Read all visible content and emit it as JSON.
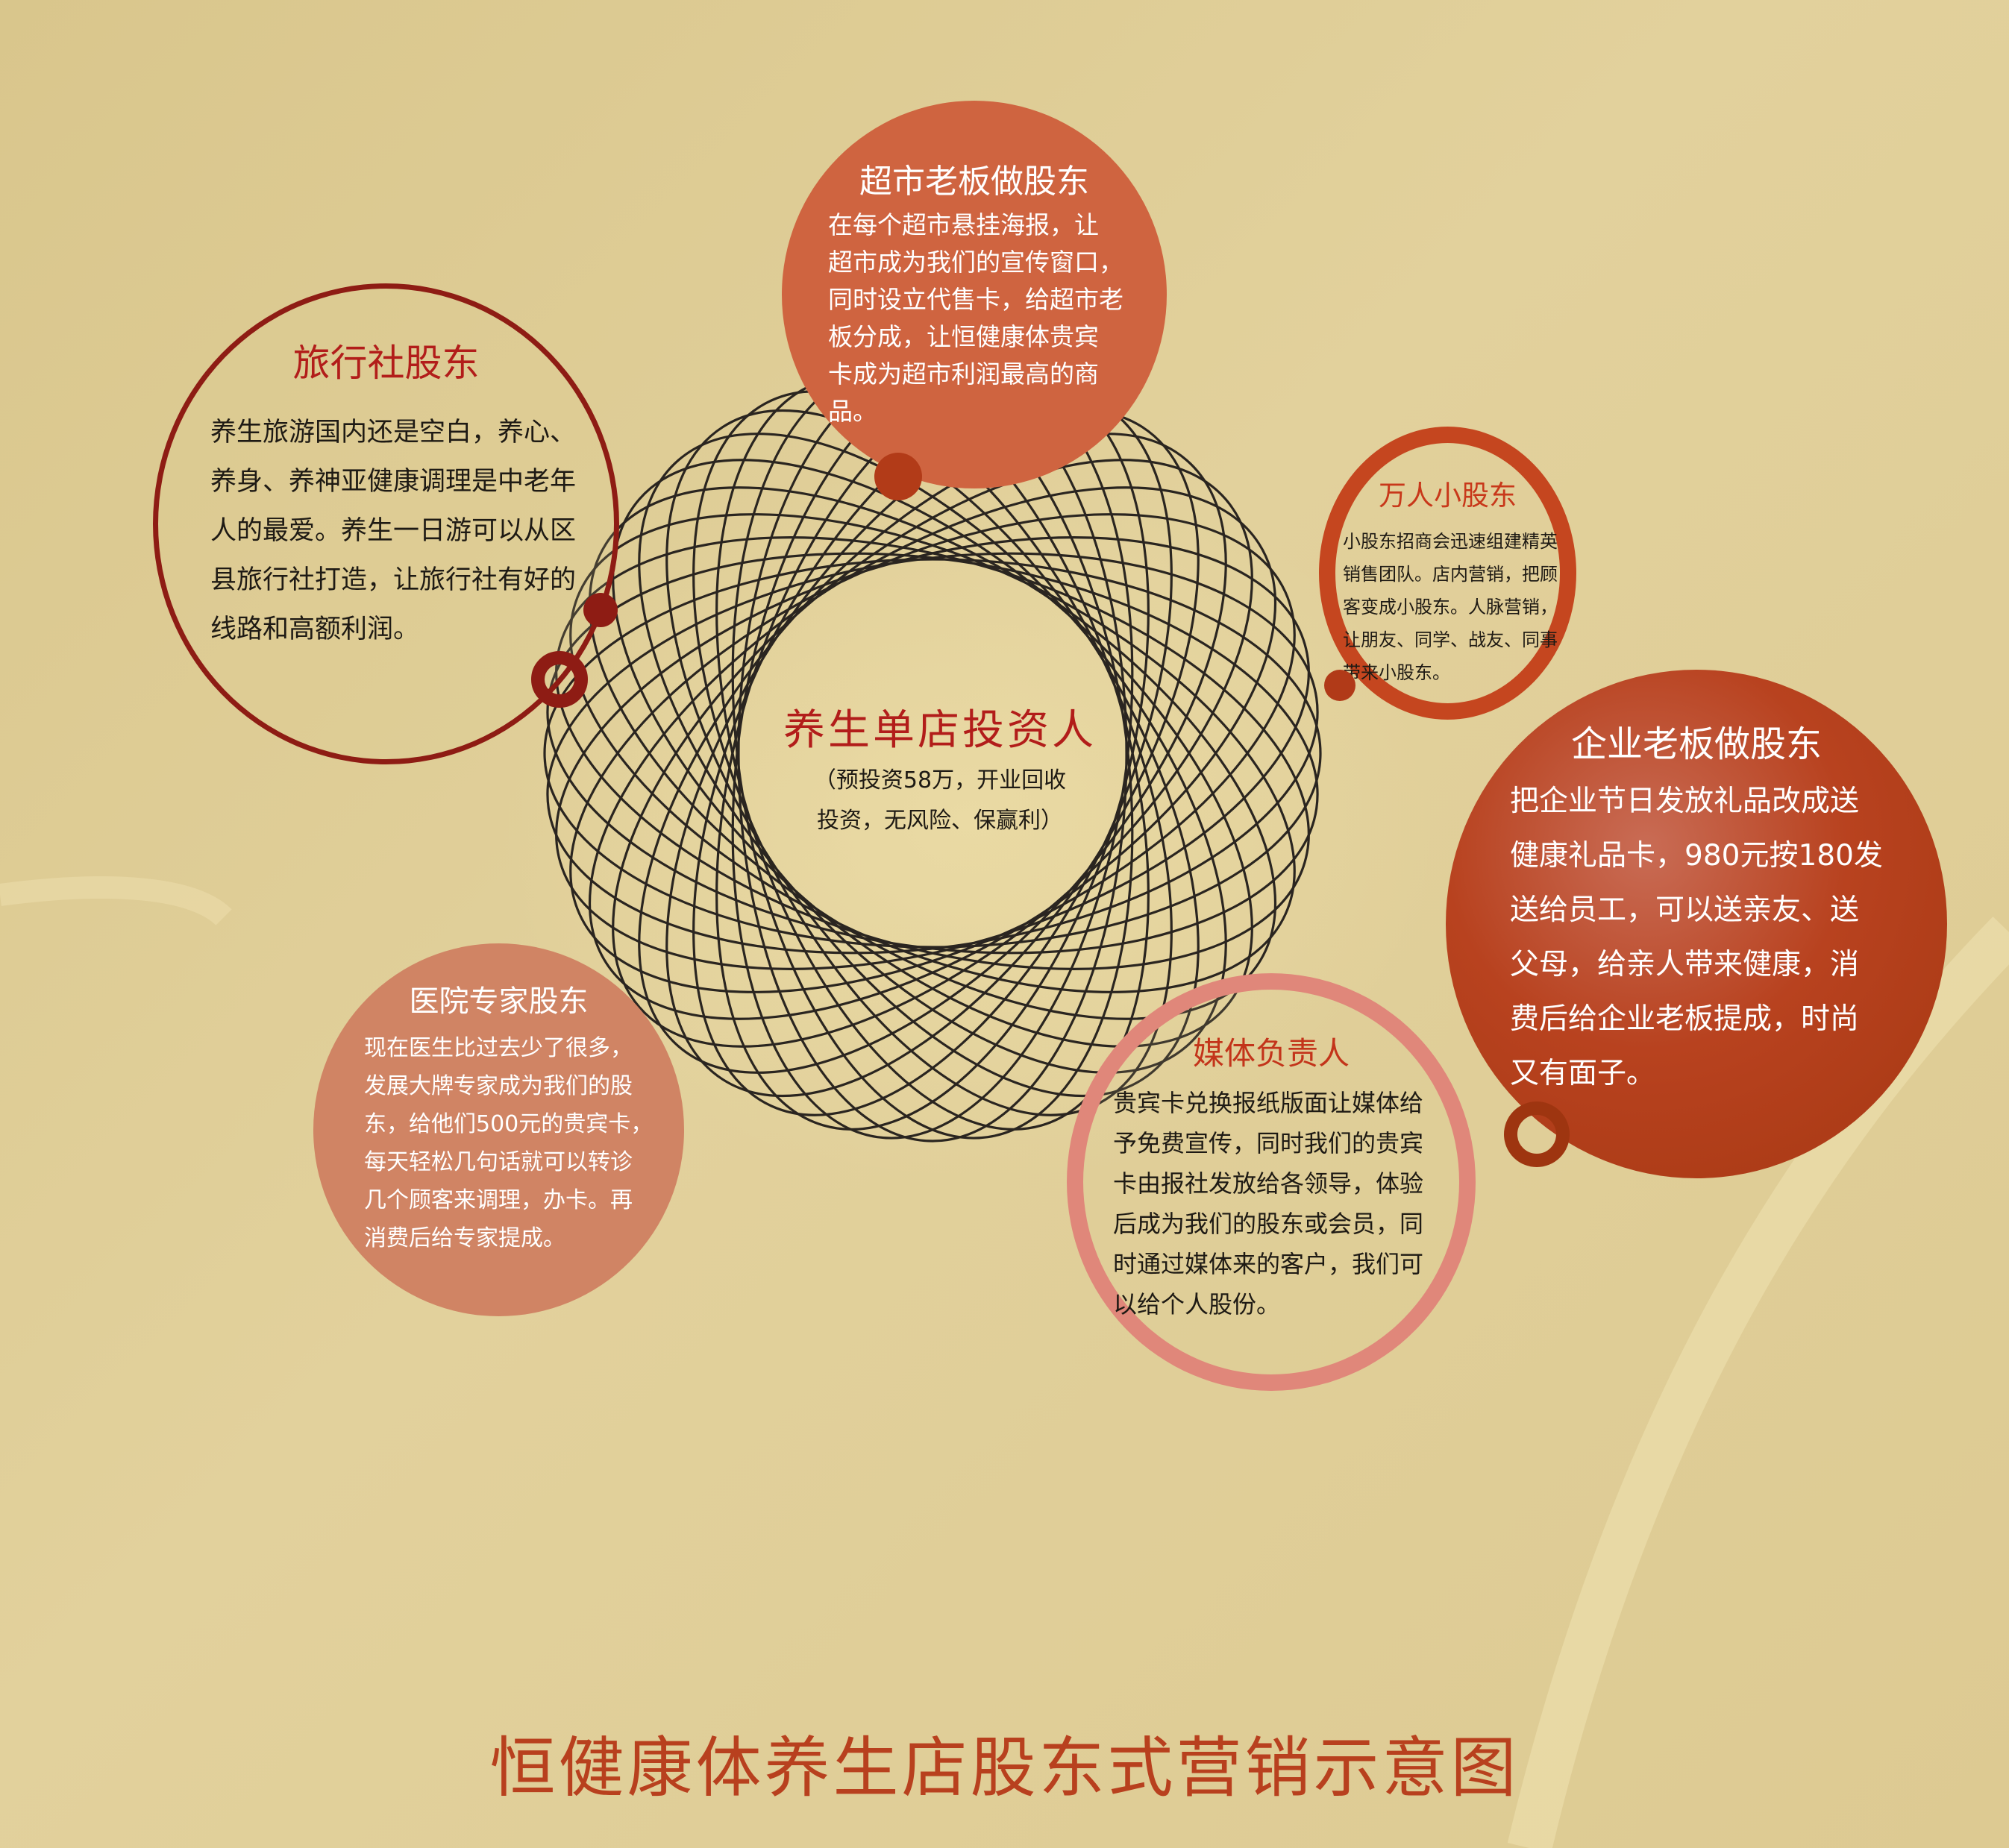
{
  "main_title": "恒健康体养生店股东式营销示意图",
  "center": {
    "title": "养生单店投资人",
    "subtitle": "（预投资58万，开业回收\n投资，无风险、保赢利）"
  },
  "nodes": {
    "travel": {
      "title": "旅行社股东",
      "body": "养生旅游国内还是空白，养心、\n养身、养神亚健康调理是中老年\n人的最爱。养生一日游可以从区\n县旅行社打造，让旅行社有好的\n线路和高额利润。"
    },
    "supermarket": {
      "title": "超市老板做股东",
      "body": "在每个超市悬挂海报，让\n超市成为我们的宣传窗口，\n同时设立代售卡，给超市老\n板分成，让恒健康体贵宾\n卡成为超市利润最高的商\n品。"
    },
    "small": {
      "title": "万人小股东",
      "body": "小股东招商会迅速组建精英\n销售团队。店内营销，把顾\n客变成小股东。人脉营销，\n让朋友、同学、战友、同事\n带来小股东。"
    },
    "enterprise": {
      "title": "企业老板做股东",
      "body": "把企业节日发放礼品改成送\n健康礼品卡，980元按180发\n送给员工，可以送亲友、送\n父母，给亲人带来健康，消\n费后给企业老板提成，时尚\n又有面子。"
    },
    "hospital": {
      "title": "医院专家股东",
      "body": "现在医生比过去少了很多，\n发展大牌专家成为我们的股\n东，给他们500元的贵宾卡，\n每天轻松几句话就可以转诊\n几个顾客来调理，办卡。再\n消费后给专家提成。"
    },
    "media": {
      "title": "媒体负责人",
      "body": "贵宾卡兑换报纸版面让媒体给\n予免费宣传，同时我们的贵宾\n卡由报社发放给各领导，体验\n后成为我们的股东或会员，同\n时通过媒体来的客户，我们可\n以给个人股份。"
    }
  }
}
